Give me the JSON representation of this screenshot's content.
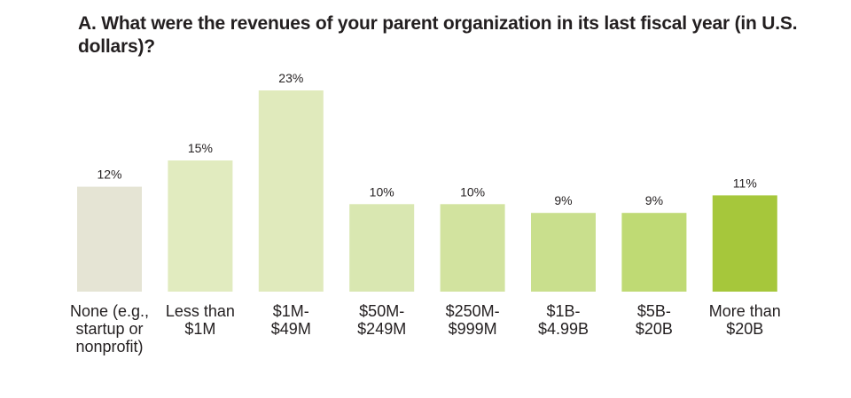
{
  "chart_data": {
    "type": "bar",
    "title": "A. What were the revenues of your parent organization in its last fiscal year (in U.S. dollars)?",
    "categories": [
      "None (e.g., startup or nonprofit)",
      "Less than $1M",
      "$1M-$49M",
      "$50M-$249M",
      "$250M-$999M",
      "$1B-$4.99B",
      "$5B-$20B",
      "More than $20B"
    ],
    "category_lines": [
      [
        "None (e.g.,",
        "startup or",
        "nonprofit)"
      ],
      [
        "Less than",
        "$1M"
      ],
      [
        "$1M-",
        "$49M"
      ],
      [
        "$50M-",
        "$249M"
      ],
      [
        "$250M-",
        "$999M"
      ],
      [
        "$1B-",
        "$4.99B"
      ],
      [
        "$5B-",
        "$20B"
      ],
      [
        "More than",
        "$20B"
      ]
    ],
    "values": [
      12,
      15,
      23,
      10,
      10,
      9,
      9,
      11
    ],
    "value_labels": [
      "12%",
      "15%",
      "23%",
      "10%",
      "10%",
      "9%",
      "9%",
      "11%"
    ],
    "unit": "%",
    "ylim": [
      0,
      23
    ],
    "xlabel": "",
    "ylabel": "",
    "grid": false,
    "legend": "none",
    "bar_colors": [
      "#e5e4d4",
      "#e1ebbf",
      "#e0eabc",
      "#d9e7b1",
      "#d2e39f",
      "#c9df8d",
      "#bfda74",
      "#a6c73b"
    ]
  }
}
